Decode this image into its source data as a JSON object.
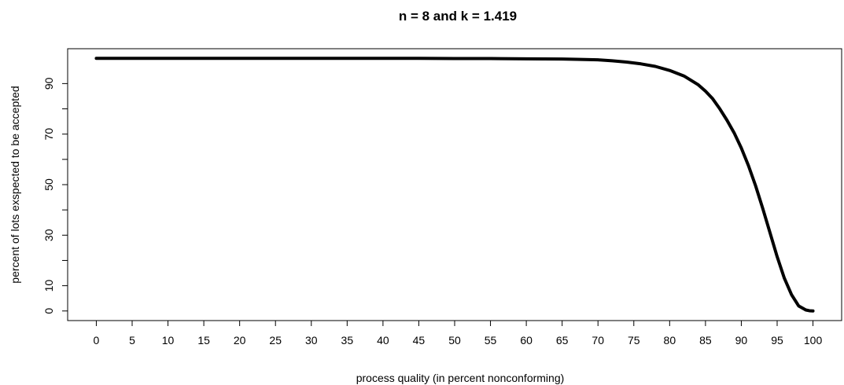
{
  "chart_data": {
    "type": "line",
    "title": "n =  8  and k =  1.419",
    "xlabel": "process quality (in percent nonconforming)",
    "ylabel": "percent of lots exspected to be accepted",
    "xlim": [
      -4,
      104
    ],
    "ylim": [
      -3.8,
      103.8
    ],
    "x_ticks": [
      0,
      5,
      10,
      15,
      20,
      25,
      30,
      35,
      40,
      45,
      50,
      55,
      60,
      65,
      70,
      75,
      80,
      85,
      90,
      95,
      100
    ],
    "y_ticks": [
      0,
      10,
      20,
      30,
      40,
      50,
      60,
      70,
      80,
      90
    ],
    "y_tick_labels": [
      "0",
      "10",
      "",
      "30",
      "",
      "50",
      "",
      "70",
      "",
      "90"
    ],
    "grid": false,
    "series": [
      {
        "color": "#000000",
        "x": [
          0,
          5,
          10,
          15,
          20,
          25,
          30,
          35,
          40,
          45,
          50,
          55,
          60,
          65,
          67,
          70,
          72,
          74,
          76,
          78,
          80,
          82,
          84,
          85,
          86,
          87,
          88,
          89,
          90,
          91,
          92,
          93,
          94,
          95,
          96,
          97,
          98,
          99,
          99.5,
          100
        ],
        "y": [
          100,
          100,
          100,
          100,
          100,
          100,
          100,
          100,
          100,
          100,
          99.9,
          99.9,
          99.8,
          99.7,
          99.6,
          99.4,
          99.0,
          98.5,
          97.8,
          96.8,
          95.2,
          93.0,
          89.5,
          87.0,
          84.0,
          80.0,
          75.5,
          70.5,
          64.5,
          57.5,
          49.5,
          40.5,
          31.0,
          21.5,
          13.0,
          6.5,
          2.0,
          0.4,
          0.1,
          0
        ]
      }
    ]
  }
}
